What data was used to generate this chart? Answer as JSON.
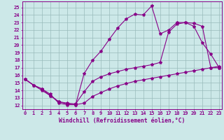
{
  "xlabel": "Windchill (Refroidissement éolien,°C)",
  "background_color": "#cce8e8",
  "grid_color": "#99bbbb",
  "line_color": "#880088",
  "x_ticks": [
    0,
    1,
    2,
    3,
    4,
    5,
    6,
    7,
    8,
    9,
    10,
    11,
    12,
    13,
    14,
    15,
    16,
    17,
    18,
    19,
    20,
    21,
    22,
    23
  ],
  "y_ticks": [
    12,
    13,
    14,
    15,
    16,
    17,
    18,
    19,
    20,
    21,
    22,
    23,
    24,
    25
  ],
  "xlim": [
    -0.3,
    23.3
  ],
  "ylim": [
    11.5,
    25.8
  ],
  "line1_x": [
    0,
    1,
    2,
    3,
    4,
    5,
    6,
    7,
    8,
    9,
    10,
    11,
    12,
    13,
    14,
    15,
    16,
    17,
    18,
    19,
    20,
    21,
    22,
    23
  ],
  "line1_y": [
    15.5,
    14.7,
    14.2,
    13.5,
    12.3,
    12.1,
    12.1,
    16.2,
    18.0,
    19.2,
    20.8,
    22.3,
    23.5,
    24.1,
    24.0,
    25.2,
    21.5,
    22.0,
    23.0,
    23.0,
    22.5,
    20.3,
    18.8,
    17.0
  ],
  "line2_x": [
    0,
    1,
    2,
    3,
    4,
    5,
    6,
    7,
    8,
    9,
    10,
    11,
    12,
    13,
    14,
    15,
    16,
    17,
    18,
    19,
    20,
    21,
    22,
    23
  ],
  "line2_y": [
    15.5,
    14.7,
    14.0,
    13.3,
    12.5,
    12.3,
    12.2,
    13.8,
    15.2,
    15.8,
    16.2,
    16.5,
    16.8,
    17.0,
    17.2,
    17.4,
    17.7,
    21.7,
    22.8,
    23.0,
    22.9,
    22.5,
    17.0,
    17.0
  ],
  "line3_x": [
    0,
    1,
    2,
    3,
    4,
    5,
    6,
    7,
    8,
    9,
    10,
    11,
    12,
    13,
    14,
    15,
    16,
    17,
    18,
    19,
    20,
    21,
    22,
    23
  ],
  "line3_y": [
    15.5,
    14.7,
    14.2,
    13.3,
    12.5,
    12.2,
    12.1,
    12.3,
    13.2,
    13.7,
    14.2,
    14.6,
    14.9,
    15.2,
    15.4,
    15.6,
    15.8,
    16.0,
    16.2,
    16.4,
    16.6,
    16.8,
    17.0,
    17.2
  ],
  "markersize": 3,
  "linewidth": 0.8,
  "tick_fontsize": 5.0,
  "label_fontsize": 5.8
}
